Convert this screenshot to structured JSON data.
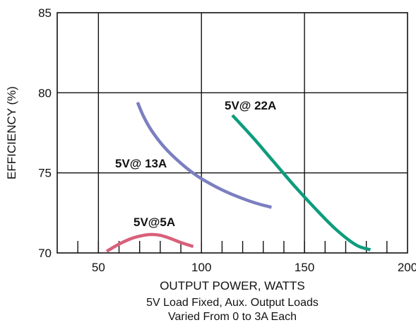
{
  "chart_data": {
    "type": "line",
    "xlabel": "OUTPUT POWER, WATTS",
    "ylabel": "EFFICIENCY (%)",
    "note_lines": [
      "5V Load Fixed, Aux. Output Loads",
      "Varied From 0 to 3A Each"
    ],
    "xlim": [
      30,
      200
    ],
    "ylim": [
      70,
      85
    ],
    "x_ticks": [
      50,
      100,
      150,
      200
    ],
    "y_ticks": [
      70,
      75,
      80,
      85
    ],
    "x_tick_labels": [
      "50",
      "100",
      "150",
      "200"
    ],
    "y_tick_labels": [
      "70",
      "75",
      "80",
      "85"
    ],
    "grid": true,
    "series": [
      {
        "name": "5V@5A",
        "color": "#d9607a",
        "x": [
          54,
          60,
          66,
          72,
          76,
          80,
          85,
          90,
          96
        ],
        "y": [
          70.1,
          70.55,
          70.9,
          71.1,
          71.15,
          71.1,
          70.9,
          70.65,
          70.4
        ]
      },
      {
        "name": "5V@ 13A",
        "color": "#7b7fc0",
        "x": [
          69,
          72,
          76,
          82,
          90,
          98,
          106,
          114,
          122,
          128,
          134
        ],
        "y": [
          79.4,
          78.5,
          77.6,
          76.6,
          75.6,
          74.8,
          74.2,
          73.7,
          73.3,
          73.05,
          72.85
        ]
      },
      {
        "name": "5V@ 22A",
        "color": "#0e9c7c",
        "x": [
          115,
          125,
          135,
          145,
          155,
          165,
          175,
          182
        ],
        "y": [
          78.6,
          77.2,
          75.7,
          74.2,
          72.8,
          71.5,
          70.5,
          70.2
        ]
      }
    ]
  }
}
